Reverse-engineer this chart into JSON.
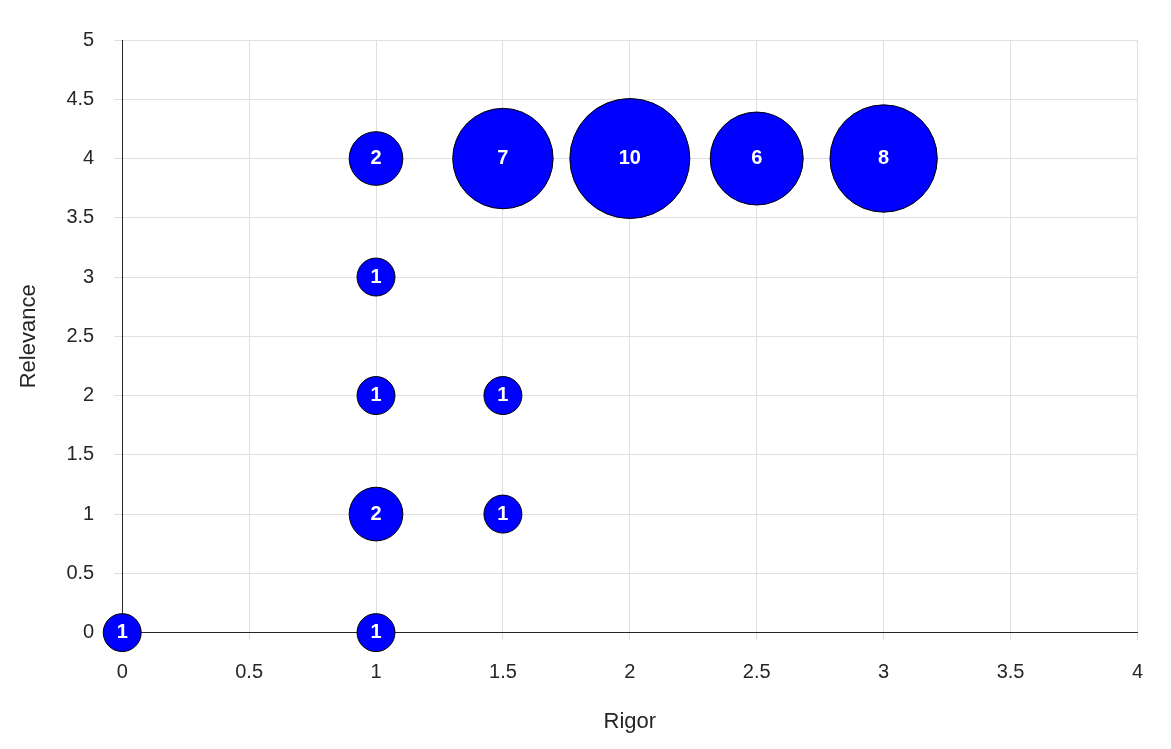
{
  "chart_data": {
    "type": "bubble",
    "xlabel": "Rigor",
    "ylabel": "Relevance",
    "x": [
      0,
      1,
      1,
      1.5,
      1,
      1.5,
      1,
      1,
      1.5,
      2,
      2.5,
      3
    ],
    "values": [
      0,
      0,
      1,
      1,
      2,
      2,
      3,
      4,
      4,
      4,
      4,
      4
    ],
    "sizes": [
      0.1,
      0.1,
      0.2,
      0.1,
      0.1,
      0.1,
      0.1,
      0.2,
      0.7,
      1,
      0.6,
      0.8
    ],
    "color": "#0000ff",
    "annotations": [
      {
        "text": "1",
        "x": 0,
        "y": 0
      },
      {
        "text": "1",
        "x": 1,
        "y": 0
      },
      {
        "text": "2",
        "x": 1,
        "y": 1
      },
      {
        "text": "1",
        "x": 1.5,
        "y": 1
      },
      {
        "text": "1",
        "x": 1,
        "y": 2
      },
      {
        "text": "1",
        "x": 1.5,
        "y": 2
      },
      {
        "text": "1",
        "x": 1,
        "y": 3
      },
      {
        "text": "2",
        "x": 1,
        "y": 4
      },
      {
        "text": "7",
        "x": 1.5,
        "y": 4
      },
      {
        "text": "10",
        "x": 2,
        "y": 4
      },
      {
        "text": "6",
        "x": 2.5,
        "y": 4
      },
      {
        "text": "8",
        "x": 3,
        "y": 4
      }
    ],
    "xlim": [
      0,
      4
    ],
    "xticks": [
      0,
      0.5,
      1,
      1.5,
      2,
      2.5,
      3,
      3.5,
      4
    ],
    "ylim": [
      0,
      5
    ],
    "yticks": [
      0,
      0.5,
      1,
      1.5,
      2,
      2.5,
      3,
      3.5,
      4,
      4.5,
      5
    ],
    "grid": true,
    "legend": false
  }
}
